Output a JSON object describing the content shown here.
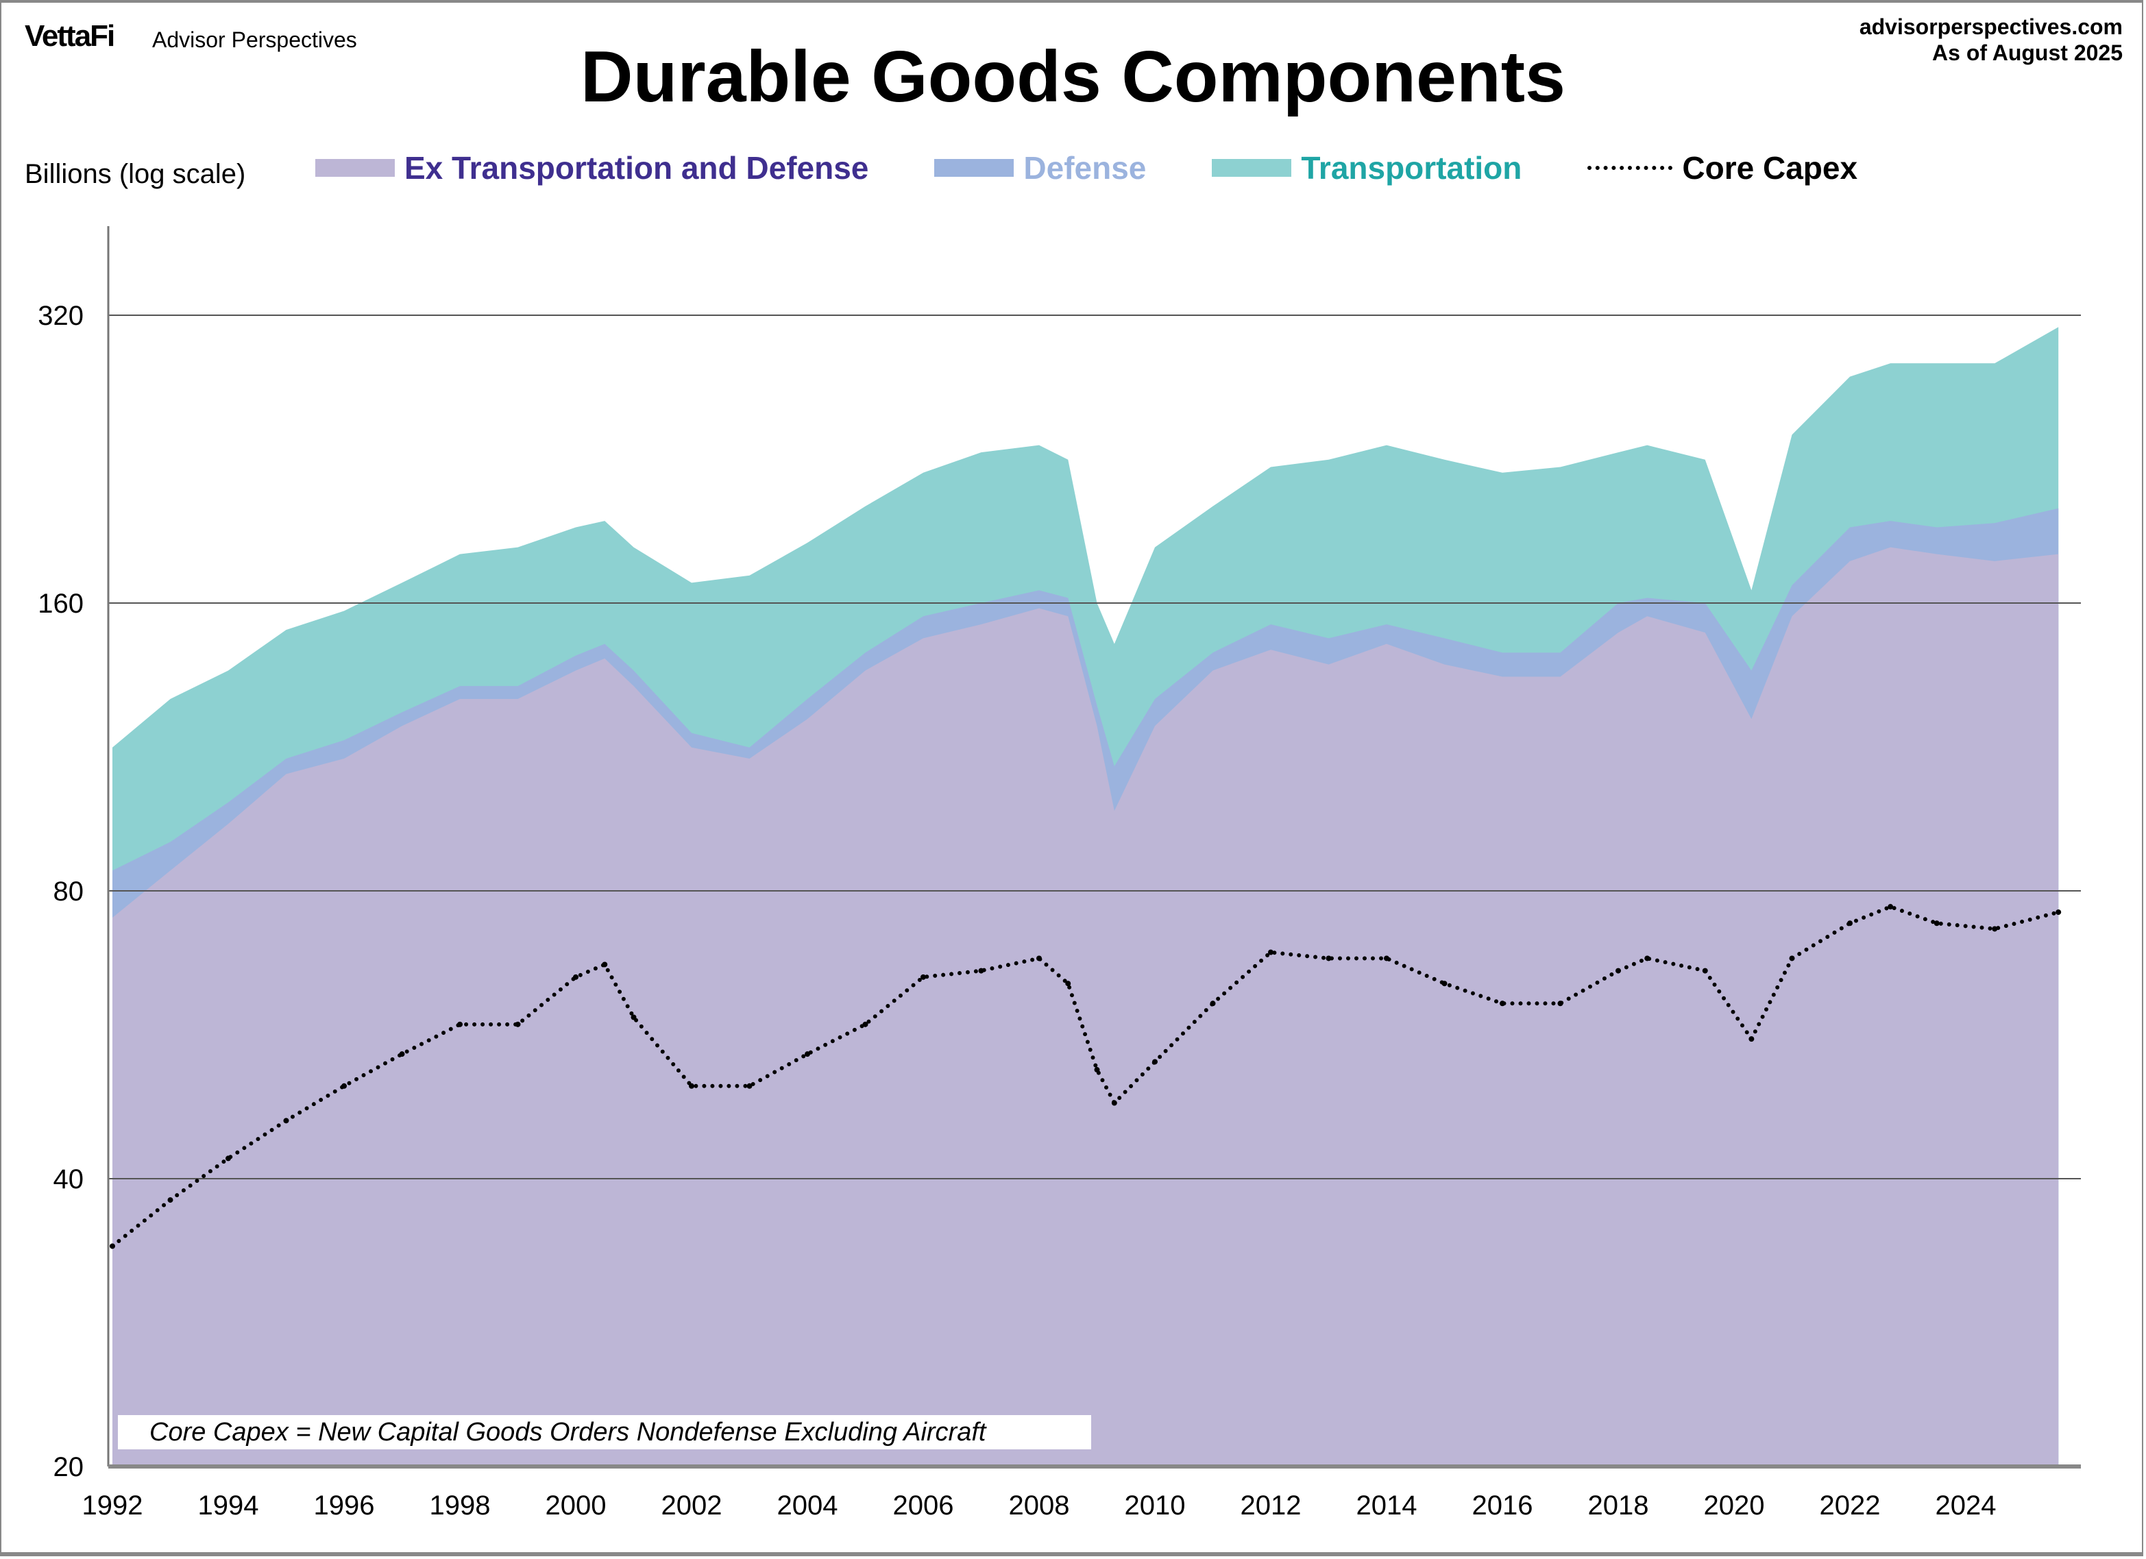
{
  "header": {
    "logo": "VettaFi",
    "logo_sub": "Advisor Perspectives",
    "site": "advisorperspectives.com",
    "as_of": "As of August 2025",
    "title": "Durable Goods Components"
  },
  "note": "Core Capex = New Capital Goods Orders Nondefense Excluding Aircraft",
  "chart_data": {
    "type": "area",
    "stacked": true,
    "title": "Durable Goods Components",
    "ylabel": "Billions (log scale)",
    "yscale": "log2",
    "ylim": [
      20,
      350
    ],
    "yticks": [
      20,
      40,
      80,
      160,
      320
    ],
    "xlim": [
      1992,
      2025.7
    ],
    "xticks": [
      1992,
      1994,
      1996,
      1998,
      2000,
      2002,
      2004,
      2006,
      2008,
      2010,
      2012,
      2014,
      2016,
      2018,
      2020,
      2022,
      2024
    ],
    "grid": true,
    "legend_position": "top",
    "x": [
      1992,
      1993,
      1994,
      1995,
      1996,
      1997,
      1998,
      1999,
      2000,
      2000.5,
      2001,
      2002,
      2003,
      2004,
      2005,
      2006,
      2007,
      2008,
      2008.5,
      2009,
      2009.3,
      2010,
      2011,
      2012,
      2013,
      2014,
      2015,
      2016,
      2017,
      2018,
      2018.5,
      2019.5,
      2020.3,
      2021,
      2022,
      2022.7,
      2023.5,
      2024.5,
      2025.6
    ],
    "series": [
      {
        "name": "Ex Transportation and Defense",
        "color": "#bdb6d6",
        "label_color": "#3f2f8f",
        "values": [
          75,
          84,
          94,
          106,
          110,
          119,
          127,
          127,
          136,
          140,
          131,
          113,
          110,
          121,
          136,
          147,
          152,
          158,
          155,
          119,
          97,
          119,
          136,
          143,
          138,
          145,
          138,
          134,
          134,
          149,
          155,
          149,
          121,
          155,
          177,
          183,
          180,
          177,
          180
        ]
      },
      {
        "name": "Defense",
        "color": "#9bb3de",
        "label_color": "#9bb3de",
        "values": [
          9,
          6,
          5,
          4,
          5,
          4,
          4,
          4,
          5,
          5,
          5,
          4,
          3,
          6,
          6,
          8,
          8,
          7,
          7,
          6,
          11,
          8,
          6,
          9,
          9,
          7,
          9,
          8,
          8,
          11,
          7,
          11,
          15,
          12,
          15,
          12,
          12,
          17,
          21
        ]
      },
      {
        "name": "Transportation",
        "color": "#8dd1d1",
        "label_color": "#1fa5a5",
        "values": [
          29,
          37,
          37,
          40,
          42,
          45,
          49,
          52,
          51,
          50,
          47,
          51,
          58,
          58,
          60,
          64,
          70,
          69,
          64,
          35,
          37,
          56,
          60,
          70,
          79,
          82,
          79,
          77,
          80,
          70,
          72,
          66,
          29,
          73,
          84,
          90,
          93,
          91,
          110
        ]
      },
      {
        "name": "Core Capex",
        "color": "#000000",
        "style": "dotted",
        "stacked": false,
        "values": [
          34,
          38,
          42,
          46,
          50,
          54,
          58,
          58,
          65,
          67,
          59,
          50,
          50,
          54,
          58,
          65,
          66,
          68,
          64,
          52,
          48,
          53,
          61,
          69,
          68,
          68,
          64,
          61,
          61,
          66,
          68,
          66,
          56,
          68,
          74,
          77,
          74,
          73,
          76
        ]
      }
    ]
  }
}
